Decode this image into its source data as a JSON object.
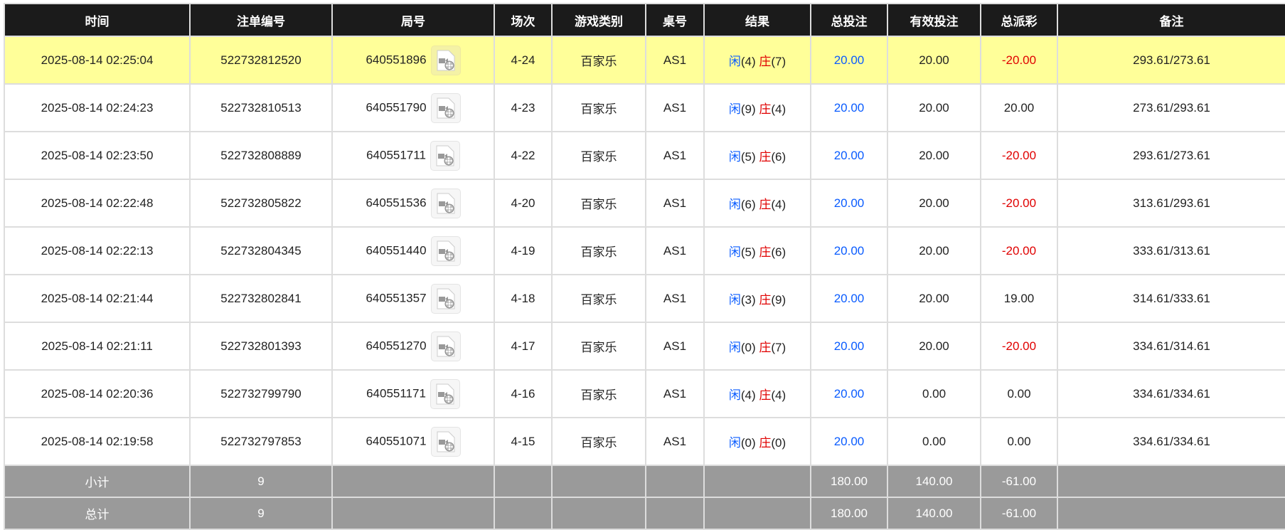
{
  "headers": [
    "时间",
    "注单编号",
    "局号",
    "场次",
    "游戏类别",
    "桌号",
    "结果",
    "总投注",
    "有效投注",
    "总派彩",
    "备注"
  ],
  "player_label": "闲",
  "banker_label": "庄",
  "rows": [
    {
      "time": "2025-08-14 02:25:04",
      "bet_id": "522732812520",
      "round": "640551896",
      "session": "4-24",
      "game": "百家乐",
      "table": "AS1",
      "player": "(4)",
      "banker": "(7)",
      "total": "20.00",
      "valid": "20.00",
      "payout": "-20.00",
      "note": "293.61/273.61",
      "highlight": true
    },
    {
      "time": "2025-08-14 02:24:23",
      "bet_id": "522732810513",
      "round": "640551790",
      "session": "4-23",
      "game": "百家乐",
      "table": "AS1",
      "player": "(9)",
      "banker": "(4)",
      "total": "20.00",
      "valid": "20.00",
      "payout": "20.00",
      "note": "273.61/293.61"
    },
    {
      "time": "2025-08-14 02:23:50",
      "bet_id": "522732808889",
      "round": "640551711",
      "session": "4-22",
      "game": "百家乐",
      "table": "AS1",
      "player": "(5)",
      "banker": "(6)",
      "total": "20.00",
      "valid": "20.00",
      "payout": "-20.00",
      "note": "293.61/273.61"
    },
    {
      "time": "2025-08-14 02:22:48",
      "bet_id": "522732805822",
      "round": "640551536",
      "session": "4-20",
      "game": "百家乐",
      "table": "AS1",
      "player": "(6)",
      "banker": "(4)",
      "total": "20.00",
      "valid": "20.00",
      "payout": "-20.00",
      "note": "313.61/293.61"
    },
    {
      "time": "2025-08-14 02:22:13",
      "bet_id": "522732804345",
      "round": "640551440",
      "session": "4-19",
      "game": "百家乐",
      "table": "AS1",
      "player": "(5)",
      "banker": "(6)",
      "total": "20.00",
      "valid": "20.00",
      "payout": "-20.00",
      "note": "333.61/313.61"
    },
    {
      "time": "2025-08-14 02:21:44",
      "bet_id": "522732802841",
      "round": "640551357",
      "session": "4-18",
      "game": "百家乐",
      "table": "AS1",
      "player": "(3)",
      "banker": "(9)",
      "total": "20.00",
      "valid": "20.00",
      "payout": "19.00",
      "note": "314.61/333.61"
    },
    {
      "time": "2025-08-14 02:21:11",
      "bet_id": "522732801393",
      "round": "640551270",
      "session": "4-17",
      "game": "百家乐",
      "table": "AS1",
      "player": "(0)",
      "banker": "(7)",
      "total": "20.00",
      "valid": "20.00",
      "payout": "-20.00",
      "note": "334.61/314.61"
    },
    {
      "time": "2025-08-14 02:20:36",
      "bet_id": "522732799790",
      "round": "640551171",
      "session": "4-16",
      "game": "百家乐",
      "table": "AS1",
      "player": "(4)",
      "banker": "(4)",
      "total": "20.00",
      "valid": "0.00",
      "payout": "0.00",
      "note": "334.61/334.61"
    },
    {
      "time": "2025-08-14 02:19:58",
      "bet_id": "522732797853",
      "round": "640551071",
      "session": "4-15",
      "game": "百家乐",
      "table": "AS1",
      "player": "(0)",
      "banker": "(0)",
      "total": "20.00",
      "valid": "0.00",
      "payout": "0.00",
      "note": "334.61/334.61"
    }
  ],
  "summary": [
    {
      "label": "小计",
      "count": "9",
      "total": "180.00",
      "valid": "140.00",
      "payout": "-61.00"
    },
    {
      "label": "总计",
      "count": "9",
      "total": "180.00",
      "valid": "140.00",
      "payout": "-61.00"
    }
  ],
  "icon": "video-replay-icon",
  "colors": {
    "header_bg": "#1b1b1b",
    "highlight": "#ffff99",
    "summary_bg": "#9a9a9a",
    "negative": "#e00000",
    "bet": "#0a5cff"
  }
}
